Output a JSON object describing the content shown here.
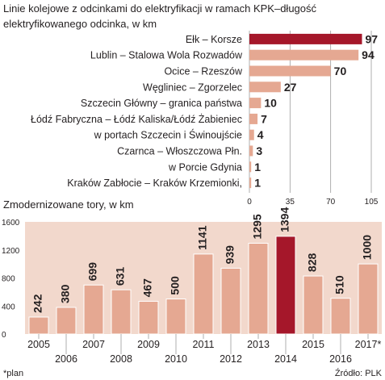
{
  "chart_data": [
    {
      "type": "bar",
      "orientation": "horizontal",
      "title": "Linie kolejowe z odcinkami do elektryfikacji w ramach KPK–długość elektryfikowanego odcinka, w km",
      "title_lines": [
        "Linie kolejowe z odcinkami do elektryfikacji w ramach KPK–długość",
        "elektryfikowanego odcinka, w km"
      ],
      "categories": [
        "Ełk – Korsze",
        "Lublin – Stalowa Wola Rozwadów",
        "Ocice – Rzeszów",
        "Węgliniec – Zgorzelec",
        "Szczecin Główny – granica państwa",
        "Łódź Fabryczna – Łódź Kaliska/Łódź Żabieniec",
        "w portach Szczecin i Świnoujście",
        "Czarnca – Włoszczowa Płn.",
        "w Porcie Gdynia",
        "Kraków Zabłocie – Kraków Krzemionki,"
      ],
      "values": [
        97,
        94,
        70,
        27,
        10,
        7,
        4,
        3,
        1,
        1
      ],
      "value_labels": [
        "97",
        "94",
        "70",
        "27",
        "10",
        "7",
        "4",
        "3",
        "1",
        "1"
      ],
      "xlim": [
        0,
        105
      ],
      "ticks": [
        0,
        35,
        70,
        105
      ],
      "tick_labels": [
        "0",
        "35",
        "70",
        "105"
      ],
      "grid": true,
      "highlight_index": 0,
      "colors": {
        "bar": "#e5a892",
        "highlight": "#a5172a",
        "grid": "#9b9b9b"
      }
    },
    {
      "type": "bar",
      "title": "Zmodernizowane tory, w km",
      "categories": [
        "2005",
        "2006",
        "2007",
        "2008",
        "2009",
        "2010",
        "2011",
        "2012",
        "2013",
        "2014",
        "2015",
        "2016",
        "2017*"
      ],
      "values": [
        242,
        380,
        699,
        631,
        467,
        500,
        1141,
        939,
        1295,
        1394,
        828,
        510,
        1000
      ],
      "value_labels": [
        "242",
        "380",
        "699",
        "631",
        "467",
        "500",
        "1141",
        "939",
        "1295",
        "1394",
        "828",
        "510",
        "1000"
      ],
      "ylim": [
        0,
        1600
      ],
      "ticks": [
        0,
        400,
        800,
        1200,
        1600
      ],
      "tick_labels": [
        "0",
        "400",
        "800",
        "1200",
        "1600"
      ],
      "highlight_index": 9,
      "colors": {
        "bar": "#e5a892",
        "highlight": "#a5172a",
        "panel": "#f2d8cc",
        "axis": "#9b9b9b"
      }
    }
  ],
  "footnote": "*plan",
  "source": "Źródło: PLK"
}
